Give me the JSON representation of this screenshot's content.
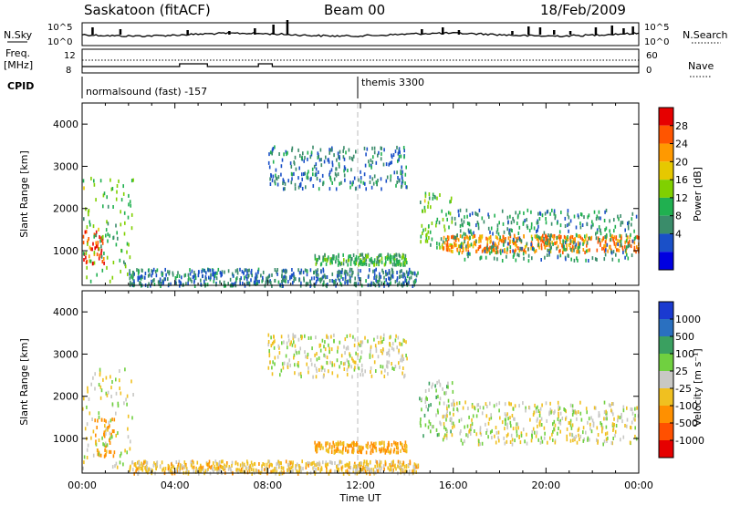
{
  "header": {
    "station": "Saskatoon (fitACF)",
    "beam": "Beam 00",
    "date": "18/Feb/2009"
  },
  "panels": {
    "nsky": {
      "left_label": "N.Sky",
      "left_ticks": [
        "10^5",
        "10^0"
      ],
      "right_ticks": [
        "10^5",
        "10^0"
      ],
      "right_label": "N.Search"
    },
    "freq": {
      "left_label_top": "Freq.",
      "left_label_unit": "[MHz]",
      "left_ticks": [
        "12",
        "8"
      ],
      "right_ticks": [
        "60",
        "0"
      ],
      "right_label": "Nave"
    },
    "cpid": {
      "label": "CPID",
      "programs": [
        "normalsound (fast) -157",
        "themis 3300"
      ]
    }
  },
  "power_colorbar": {
    "label": "Power [dB]",
    "levels": [
      "28",
      "24",
      "20",
      "16",
      "12",
      "8",
      "4"
    ],
    "colors": [
      "#e60000",
      "#ff5500",
      "#ff9900",
      "#e6c800",
      "#80d000",
      "#20b050",
      "#3a8c6a",
      "#1a50c8",
      "#0000e0"
    ]
  },
  "velocity_colorbar": {
    "label": "Velocity [m s⁻¹]",
    "levels": [
      "1000",
      "500",
      "100",
      "25",
      "-25",
      "-100",
      "-500",
      "-1000"
    ],
    "colors": [
      "#1a3ad0",
      "#2a70c0",
      "#3aa060",
      "#70d040",
      "#c8c8c4",
      "#f0c020",
      "#ff9000",
      "#ff5000",
      "#e60000"
    ]
  },
  "time_axis": {
    "label": "Time UT",
    "ticks": [
      "00:00",
      "04:00",
      "08:00",
      "12:00",
      "16:00",
      "20:00",
      "00:00"
    ]
  },
  "range_axis": {
    "label": "Slant Range [km]",
    "ticks": [
      "1000",
      "2000",
      "3000",
      "4000"
    ]
  },
  "chart_data": [
    {
      "type": "heatmap",
      "quantity": "Power",
      "xlabel": "Time UT",
      "ylabel": "Slant Range [km]",
      "xlim_hours": [
        0,
        24
      ],
      "ylim_km": [
        180,
        4500
      ],
      "colorbar_label": "Power [dB]",
      "scatter_regions": [
        {
          "t0": 0.0,
          "t1": 1.0,
          "r0": 700,
          "r1": 1500,
          "value_db": 28
        },
        {
          "t0": 0.0,
          "t1": 2.2,
          "r0": 300,
          "r1": 2800,
          "value_db": 14
        },
        {
          "t0": 2.0,
          "t1": 14.5,
          "r0": 200,
          "r1": 600,
          "value_db": 8
        },
        {
          "t0": 10.0,
          "t1": 14.0,
          "r0": 700,
          "r1": 950,
          "value_db": 12
        },
        {
          "t0": 14.5,
          "t1": 16.0,
          "r0": 1100,
          "r1": 2400,
          "value_db": 14
        },
        {
          "t0": 15.5,
          "t1": 24.0,
          "r0": 1000,
          "r1": 1400,
          "value_db": 24
        },
        {
          "t0": 16.0,
          "t1": 24.0,
          "r0": 800,
          "r1": 2000,
          "value_db": 10
        },
        {
          "t0": 8.0,
          "t1": 14.0,
          "r0": 2500,
          "r1": 3500,
          "value_db": 8
        }
      ]
    },
    {
      "type": "heatmap",
      "quantity": "Velocity",
      "xlabel": "Time UT",
      "ylabel": "Slant Range [km]",
      "xlim_hours": [
        0,
        24
      ],
      "ylim_km": [
        180,
        4500
      ],
      "colorbar_label": "Velocity [m s⁻¹]",
      "scatter_regions": [
        {
          "t0": 0.5,
          "t1": 1.4,
          "r0": 600,
          "r1": 1500,
          "value_ms": -300
        },
        {
          "t0": 0.0,
          "t1": 2.2,
          "r0": 300,
          "r1": 2700,
          "value_ms": 0
        },
        {
          "t0": 2.0,
          "t1": 14.5,
          "r0": 200,
          "r1": 500,
          "value_ms": -50
        },
        {
          "t0": 10.0,
          "t1": 14.0,
          "r0": 700,
          "r1": 950,
          "value_ms": -100
        },
        {
          "t0": 14.5,
          "t1": 16.0,
          "r0": 1100,
          "r1": 2400,
          "value_ms": 50
        },
        {
          "t0": 15.5,
          "t1": 24.0,
          "r0": 900,
          "r1": 1900,
          "value_ms": 0
        },
        {
          "t0": 8.0,
          "t1": 14.0,
          "r0": 2500,
          "r1": 3500,
          "value_ms": 0
        }
      ]
    }
  ]
}
